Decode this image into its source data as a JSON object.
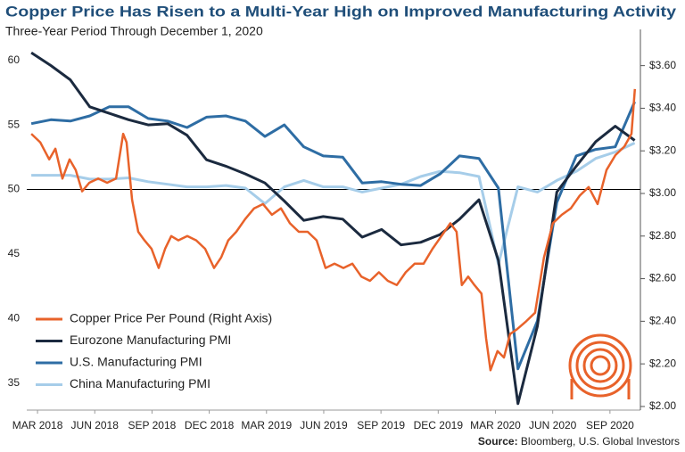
{
  "chart_data": {
    "type": "line",
    "title": "Copper Price Has Risen to a Multi-Year High on Improved Manufacturing Activity",
    "subtitle": "Three-Year Period Through December 1, 2020",
    "source_label": "Source:",
    "source": "Bloomberg, U.S. Global Investors",
    "xlim": [
      2018.12,
      2020.8
    ],
    "xticks": [
      {
        "value": 2018.167,
        "label": "MAR 2018"
      },
      {
        "value": 2018.417,
        "label": "JUN 2018"
      },
      {
        "value": 2018.667,
        "label": "SEP 2018"
      },
      {
        "value": 2018.917,
        "label": "DEC 2018"
      },
      {
        "value": 2019.167,
        "label": "MAR 2019"
      },
      {
        "value": 2019.417,
        "label": "JUN 2019"
      },
      {
        "value": 2019.667,
        "label": "SEP 2019"
      },
      {
        "value": 2019.917,
        "label": "DEC 2019"
      },
      {
        "value": 2020.167,
        "label": "MAR 2020"
      },
      {
        "value": 2020.417,
        "label": "JUN 2020"
      },
      {
        "value": 2020.667,
        "label": "SEP 2020"
      }
    ],
    "ylim": [
      32.9,
      62.4
    ],
    "yticks": [
      35,
      40,
      45,
      50,
      55,
      60
    ],
    "y2lim": [
      1.983,
      3.77
    ],
    "y2ticks": [
      {
        "value": 2.0,
        "label": "$2.00"
      },
      {
        "value": 2.2,
        "label": "$2.20"
      },
      {
        "value": 2.4,
        "label": "$2.40"
      },
      {
        "value": 2.6,
        "label": "$2.60"
      },
      {
        "value": 2.8,
        "label": "$2.80"
      },
      {
        "value": 3.0,
        "label": "$3.00"
      },
      {
        "value": 3.2,
        "label": "$3.20"
      },
      {
        "value": 3.4,
        "label": "$3.40"
      },
      {
        "value": 3.6,
        "label": "$3.60"
      }
    ],
    "reference_line": 50,
    "legend": "lower left",
    "series": [
      {
        "name": "Copper Price Per Pound (Right Axis)",
        "color": "#e8622a",
        "axis": "y2",
        "x": [
          2018.14,
          2018.179,
          2018.218,
          2018.245,
          2018.276,
          2018.307,
          2018.334,
          2018.362,
          2018.393,
          2018.432,
          2018.471,
          2018.51,
          2018.541,
          2018.556,
          2018.58,
          2018.607,
          2018.634,
          2018.665,
          2018.696,
          2018.724,
          2018.751,
          2018.782,
          2018.821,
          2018.86,
          2018.899,
          2018.938,
          2018.969,
          2019.0,
          2019.035,
          2019.074,
          2019.113,
          2019.152,
          2019.191,
          2019.23,
          2019.269,
          2019.308,
          2019.347,
          2019.386,
          2019.425,
          2019.464,
          2019.503,
          2019.542,
          2019.581,
          2019.619,
          2019.658,
          2019.697,
          2019.736,
          2019.775,
          2019.814,
          2019.853,
          2019.892,
          2019.931,
          2019.97,
          2019.997,
          2020.02,
          2020.048,
          2020.075,
          2020.106,
          2020.126,
          2020.145,
          2020.176,
          2020.204,
          2020.231,
          2020.258,
          2020.301,
          2020.34,
          2020.379,
          2020.418,
          2020.457,
          2020.496,
          2020.535,
          2020.574,
          2020.613,
          2020.652,
          2020.691,
          2020.73,
          2020.761,
          2020.776
        ],
        "values": [
          3.28,
          3.24,
          3.16,
          3.21,
          3.07,
          3.16,
          3.11,
          3.01,
          3.05,
          3.07,
          3.05,
          3.07,
          3.28,
          3.24,
          2.97,
          2.82,
          2.78,
          2.74,
          2.65,
          2.74,
          2.8,
          2.78,
          2.8,
          2.78,
          2.74,
          2.65,
          2.7,
          2.78,
          2.82,
          2.88,
          2.93,
          2.95,
          2.9,
          2.93,
          2.86,
          2.82,
          2.82,
          2.78,
          2.65,
          2.67,
          2.65,
          2.67,
          2.61,
          2.59,
          2.63,
          2.59,
          2.57,
          2.63,
          2.67,
          2.67,
          2.74,
          2.8,
          2.86,
          2.82,
          2.57,
          2.61,
          2.57,
          2.53,
          2.32,
          2.17,
          2.26,
          2.23,
          2.34,
          2.36,
          2.4,
          2.44,
          2.7,
          2.86,
          2.9,
          2.93,
          2.99,
          3.03,
          2.95,
          3.11,
          3.18,
          3.22,
          3.28,
          3.49
        ]
      },
      {
        "name": "Eurozone Manufacturing PMI",
        "color": "#1b2a3f",
        "x": [
          2018.14,
          2018.225,
          2018.31,
          2018.395,
          2018.48,
          2018.565,
          2018.65,
          2018.735,
          2018.82,
          2018.905,
          2018.99,
          2019.075,
          2019.16,
          2019.245,
          2019.33,
          2019.415,
          2019.5,
          2019.585,
          2019.67,
          2019.755,
          2019.84,
          2019.925,
          2020.01,
          2020.095,
          2020.18,
          2020.265,
          2020.35,
          2020.435,
          2020.52,
          2020.605,
          2020.69,
          2020.775
        ],
        "values": [
          60.6,
          59.6,
          58.5,
          56.4,
          55.9,
          55.4,
          55.0,
          55.1,
          54.2,
          52.3,
          51.8,
          51.2,
          50.5,
          49.1,
          47.6,
          47.9,
          47.7,
          46.3,
          46.9,
          45.7,
          45.9,
          46.5,
          47.7,
          49.2,
          44.5,
          33.4,
          39.4,
          49.8,
          51.8,
          53.7,
          54.9,
          53.8
        ]
      },
      {
        "name": "U.S. Manufacturing PMI",
        "color": "#2e6da4",
        "x": [
          2018.14,
          2018.225,
          2018.31,
          2018.395,
          2018.48,
          2018.565,
          2018.65,
          2018.735,
          2018.82,
          2018.905,
          2018.99,
          2019.075,
          2019.16,
          2019.245,
          2019.33,
          2019.415,
          2019.5,
          2019.585,
          2019.67,
          2019.755,
          2019.84,
          2019.925,
          2020.01,
          2020.095,
          2020.18,
          2020.265,
          2020.35,
          2020.435,
          2020.52,
          2020.605,
          2020.69,
          2020.775
        ],
        "values": [
          55.1,
          55.4,
          55.3,
          55.7,
          56.4,
          56.4,
          55.5,
          55.3,
          54.8,
          55.6,
          55.7,
          55.3,
          54.1,
          55.0,
          53.3,
          52.6,
          52.5,
          50.5,
          50.6,
          50.4,
          50.3,
          51.2,
          52.6,
          52.4,
          50.1,
          36.1,
          39.8,
          49.0,
          52.6,
          53.1,
          53.3,
          56.8
        ]
      },
      {
        "name": "China Manufacturing PMI",
        "color": "#a6cde9",
        "x": [
          2018.14,
          2018.225,
          2018.31,
          2018.395,
          2018.48,
          2018.565,
          2018.65,
          2018.735,
          2018.82,
          2018.905,
          2018.99,
          2019.075,
          2019.16,
          2019.245,
          2019.33,
          2019.415,
          2019.5,
          2019.585,
          2019.67,
          2019.755,
          2019.84,
          2019.925,
          2020.01,
          2020.095,
          2020.18,
          2020.265,
          2020.35,
          2020.435,
          2020.52,
          2020.605,
          2020.69,
          2020.775
        ],
        "values": [
          51.1,
          51.1,
          51.1,
          50.8,
          50.8,
          50.9,
          50.6,
          50.4,
          50.2,
          50.2,
          50.3,
          50.1,
          48.9,
          50.2,
          50.7,
          50.2,
          50.2,
          49.8,
          50.1,
          50.4,
          51.0,
          51.4,
          51.3,
          51.0,
          44.2,
          50.2,
          49.8,
          50.7,
          51.4,
          52.4,
          52.9,
          53.6
        ]
      }
    ]
  }
}
